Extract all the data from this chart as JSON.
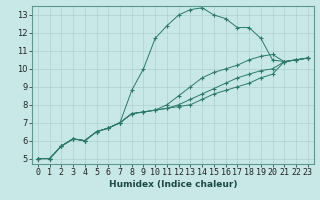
{
  "xlabel": "Humidex (Indice chaleur)",
  "ylabel": "",
  "bg_color": "#c8e8e8",
  "grid_color": "#b0d0d0",
  "line_color": "#2a7a6a",
  "xlim": [
    -0.5,
    23.5
  ],
  "ylim": [
    4.7,
    13.5
  ],
  "xticks": [
    0,
    1,
    2,
    3,
    4,
    5,
    6,
    7,
    8,
    9,
    10,
    11,
    12,
    13,
    14,
    15,
    16,
    17,
    18,
    19,
    20,
    21,
    22,
    23
  ],
  "yticks": [
    5,
    6,
    7,
    8,
    9,
    10,
    11,
    12,
    13
  ],
  "lines": [
    {
      "x": [
        0,
        1,
        2,
        3,
        4,
        5,
        6,
        7,
        8,
        9,
        10,
        11,
        12,
        13,
        14,
        15,
        16,
        17,
        18,
        19,
        20,
        21,
        22,
        23
      ],
      "y": [
        5,
        5,
        5.7,
        6.1,
        6.0,
        6.5,
        6.7,
        7.0,
        8.8,
        10.0,
        11.7,
        12.4,
        13.0,
        13.3,
        13.4,
        13.0,
        12.8,
        12.3,
        12.3,
        11.7,
        10.5,
        10.4,
        10.5,
        10.6
      ]
    },
    {
      "x": [
        0,
        1,
        2,
        3,
        4,
        5,
        6,
        7,
        8,
        9,
        10,
        11,
        12,
        13,
        14,
        15,
        16,
        17,
        18,
        19,
        20,
        21,
        22,
        23
      ],
      "y": [
        5,
        5,
        5.7,
        6.1,
        6.0,
        6.5,
        6.7,
        7.0,
        7.5,
        7.6,
        7.7,
        8.0,
        8.5,
        9.0,
        9.5,
        9.8,
        10.0,
        10.2,
        10.5,
        10.7,
        10.8,
        10.4,
        10.5,
        10.6
      ]
    },
    {
      "x": [
        0,
        1,
        2,
        3,
        4,
        5,
        6,
        7,
        8,
        9,
        10,
        11,
        12,
        13,
        14,
        15,
        16,
        17,
        18,
        19,
        20,
        21,
        22,
        23
      ],
      "y": [
        5,
        5,
        5.7,
        6.1,
        6.0,
        6.5,
        6.7,
        7.0,
        7.5,
        7.6,
        7.7,
        7.8,
        8.0,
        8.3,
        8.6,
        8.9,
        9.2,
        9.5,
        9.7,
        9.9,
        10.0,
        10.4,
        10.5,
        10.6
      ]
    },
    {
      "x": [
        0,
        1,
        2,
        3,
        4,
        5,
        6,
        7,
        8,
        9,
        10,
        11,
        12,
        13,
        14,
        15,
        16,
        17,
        18,
        19,
        20,
        21,
        22,
        23
      ],
      "y": [
        5,
        5,
        5.7,
        6.1,
        6.0,
        6.5,
        6.7,
        7.0,
        7.5,
        7.6,
        7.7,
        7.8,
        7.9,
        8.0,
        8.3,
        8.6,
        8.8,
        9.0,
        9.2,
        9.5,
        9.7,
        10.4,
        10.5,
        10.6
      ]
    }
  ]
}
